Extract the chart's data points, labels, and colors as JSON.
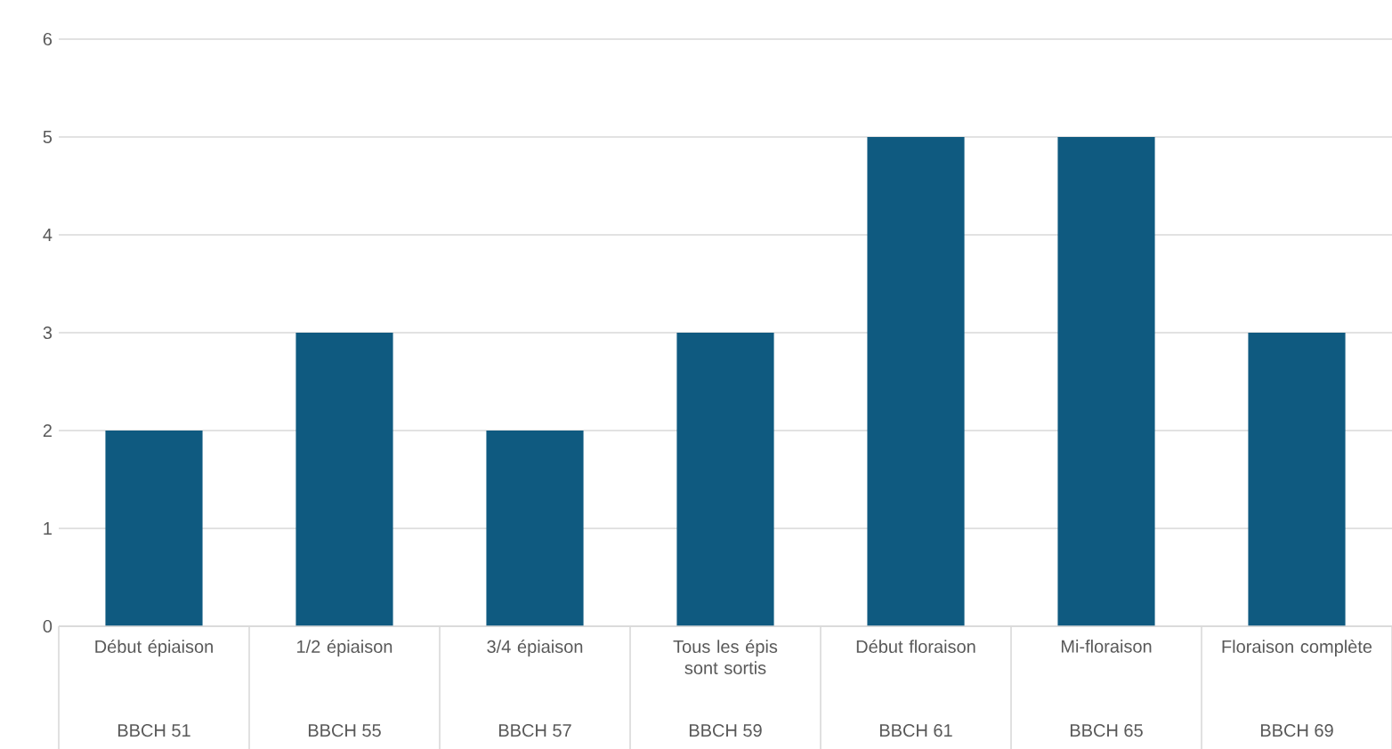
{
  "chart_data": {
    "type": "bar",
    "categories": [
      "Début épiaison",
      "1/2 épiaison",
      "3/4 épiaison",
      "Tous les épis sont sortis",
      "Début floraison",
      "Mi-floraison",
      "Floraison complète"
    ],
    "values": [
      2,
      3,
      2,
      3,
      5,
      5,
      3
    ],
    "color": "#0f5a80",
    "ylim": [
      0,
      6
    ],
    "yticks": [
      0,
      1,
      2,
      3,
      4,
      5,
      6
    ],
    "grid": "y",
    "annotations": [
      "BBCH 51",
      "BBCH 55",
      "BBCH 57",
      "BBCH 59",
      "BBCH 61",
      "BBCH 65",
      "BBCH 69"
    ]
  }
}
